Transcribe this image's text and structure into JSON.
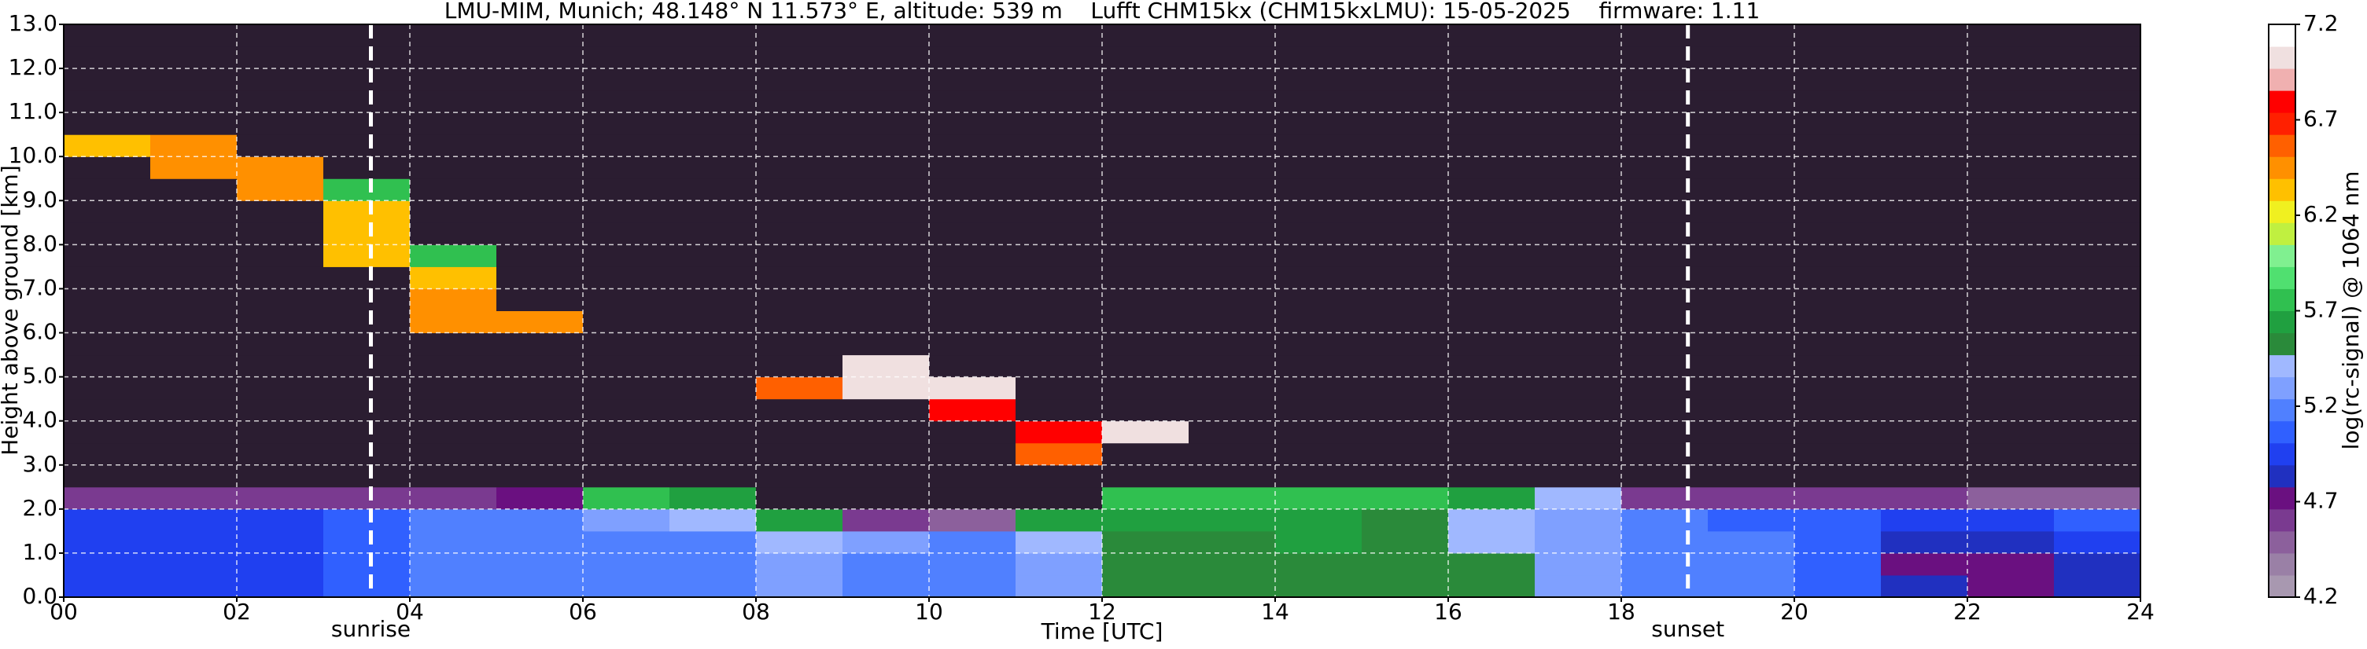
{
  "chart_data": {
    "type": "heatmap",
    "title": "LMU-MIM, Munich; 48.148° N 11.573° E, altitude: 539 m    Lufft CHM15kx (CHM15kxLMU): 15-05-2025    firmware: 1.11",
    "xlabel": "Time [UTC]",
    "ylabel": "Height above ground [km]",
    "colorbar_label": "log(rc-signal) @ 1064 nm",
    "xlim": [
      0,
      24
    ],
    "ylim": [
      0,
      13
    ],
    "clim": [
      4.2,
      7.2
    ],
    "xticks": [
      {
        "value": 0,
        "label": "00"
      },
      {
        "value": 2,
        "label": "02"
      },
      {
        "value": 4,
        "label": "04"
      },
      {
        "value": 6,
        "label": "06"
      },
      {
        "value": 8,
        "label": "08"
      },
      10,
      12,
      14,
      16,
      18,
      20,
      22,
      24
    ],
    "yticks": [
      {
        "value": 0,
        "label": "0.0"
      },
      {
        "value": 1,
        "label": "1.0"
      },
      {
        "value": 2,
        "label": "2.0"
      },
      {
        "value": 3,
        "label": "3.0"
      },
      {
        "value": 4,
        "label": "4.0"
      },
      {
        "value": 5,
        "label": "5.0"
      },
      {
        "value": 6,
        "label": "6.0"
      },
      {
        "value": 7,
        "label": "7.0"
      },
      {
        "value": 8,
        "label": "8.0"
      },
      {
        "value": 9,
        "label": "9.0"
      },
      {
        "value": 10,
        "label": "10.0"
      },
      {
        "value": 11,
        "label": "11.0"
      },
      {
        "value": 12,
        "label": "12.0"
      },
      {
        "value": 13,
        "label": "13.0"
      }
    ],
    "cticks": [
      4.2,
      4.7,
      5.2,
      5.7,
      6.2,
      6.7,
      7.2
    ],
    "grid": true,
    "grid_color": "#ffffff",
    "under_color": "#2b1d31",
    "colormap": [
      "#a898b0",
      "#9a80a6",
      "#8c609c",
      "#7a3a90",
      "#6a1080",
      "#2030c0",
      "#2040f0",
      "#3060ff",
      "#5080ff",
      "#7fa0ff",
      "#a0b8ff",
      "#2a8a3a",
      "#20a040",
      "#30c050",
      "#50e070",
      "#80f090",
      "#c0f040",
      "#f0f020",
      "#ffc000",
      "#ff9000",
      "#ff6000",
      "#ff2000",
      "#ff0000",
      "#f0b0b0",
      "#f0e0e0",
      "#ffffff"
    ],
    "annotations": [
      {
        "text": "sunrise",
        "x": 3.55
      },
      {
        "text": "sunset",
        "x": 18.77
      }
    ],
    "x_bins": [
      0,
      1,
      2,
      3,
      4,
      5,
      6,
      7,
      8,
      9,
      10,
      11,
      12,
      13,
      14,
      15,
      16,
      17,
      18,
      19,
      20,
      21,
      22,
      23,
      24
    ],
    "y_bins": [
      0,
      0.5,
      1,
      1.5,
      2,
      2.5,
      3,
      3.5,
      4,
      4.5,
      5,
      5.5,
      6,
      6.5,
      7,
      7.5,
      8,
      8.5,
      9,
      9.5,
      10,
      10.5,
      11,
      11.5,
      12,
      12.5,
      13
    ],
    "z": [
      [
        5,
        5,
        5,
        5,
        4.6,
        4,
        4,
        4,
        4,
        4,
        4,
        4,
        4,
        4,
        4,
        4,
        4,
        4,
        4,
        4,
        6.3,
        4,
        4,
        4,
        4,
        4
      ],
      [
        5,
        5,
        5,
        5,
        4.6,
        4,
        4,
        4,
        4,
        4,
        4,
        4,
        4,
        4,
        4,
        4,
        4,
        4,
        4,
        6.4,
        6.4,
        4,
        4,
        4,
        4,
        4
      ],
      [
        5,
        5,
        5,
        5,
        4.6,
        4,
        4,
        4,
        4,
        4,
        4,
        4,
        4,
        4,
        4,
        4,
        4,
        4,
        6.5,
        6.5,
        4,
        4,
        4,
        4,
        4,
        4
      ],
      [
        5.1,
        5.1,
        5.1,
        5.1,
        4.6,
        4,
        4,
        4,
        4,
        4,
        4,
        4,
        4,
        4,
        4,
        6.3,
        6.3,
        6.3,
        5.7,
        4,
        4,
        4,
        4,
        4,
        4,
        4
      ],
      [
        5.2,
        5.2,
        5.2,
        5.2,
        4.6,
        4,
        4,
        4,
        4,
        4,
        4,
        4,
        6.4,
        6.4,
        6.3,
        5.7,
        4,
        4,
        4,
        4,
        4,
        4,
        4,
        4,
        4,
        4
      ],
      [
        5.2,
        5.2,
        5.2,
        5.2,
        4.7,
        4,
        4,
        4,
        4,
        4,
        4,
        4,
        6.5,
        4,
        4,
        4,
        4,
        4,
        4,
        4,
        4,
        4,
        4,
        4,
        4,
        4
      ],
      [
        5.2,
        5.2,
        5.2,
        5.3,
        5.8,
        4,
        4,
        4,
        4,
        4,
        4,
        4,
        4,
        4,
        4,
        4,
        4,
        4,
        4,
        4,
        4,
        4,
        4,
        4,
        4,
        4
      ],
      [
        5.2,
        5.2,
        5.2,
        5.4,
        5.6,
        4,
        4,
        4,
        4,
        4,
        4,
        4,
        4,
        4,
        4,
        4,
        4,
        4,
        4,
        4,
        4,
        4,
        4,
        4,
        4,
        4
      ],
      [
        5.3,
        5.3,
        5.4,
        5.6,
        4,
        4,
        4,
        4,
        4,
        6.6,
        4,
        4,
        4,
        4,
        4,
        4,
        4,
        4,
        4,
        4,
        4,
        4,
        4,
        4,
        4,
        4
      ],
      [
        5.2,
        5.2,
        5.3,
        4.6,
        4,
        4,
        4,
        4,
        4,
        7.0,
        7.0,
        4,
        4,
        4,
        4,
        4,
        4,
        4,
        4,
        4,
        4,
        4,
        4,
        4,
        4,
        4
      ],
      [
        5.2,
        5.2,
        5.2,
        4.5,
        4,
        4,
        4,
        4,
        6.8,
        7.0,
        4,
        4,
        4,
        4,
        4,
        4,
        4,
        4,
        4,
        4,
        4,
        4,
        4,
        4,
        4,
        4
      ],
      [
        5.3,
        5.3,
        5.4,
        5.6,
        4,
        4,
        6.6,
        6.8,
        4,
        4,
        4,
        4,
        4,
        4,
        4,
        4,
        4,
        4,
        4,
        4,
        4,
        4,
        4,
        4,
        4,
        4
      ],
      [
        5.5,
        5.5,
        5.5,
        5.6,
        5.7,
        4,
        4,
        7.0,
        4,
        4,
        4,
        4,
        4,
        4,
        4,
        4,
        4,
        4,
        4,
        4,
        4,
        4,
        4,
        4,
        4,
        4
      ],
      [
        5.5,
        5.5,
        5.5,
        5.6,
        5.8,
        4,
        4,
        4,
        4,
        4,
        4,
        4,
        4,
        4,
        4,
        4,
        4,
        4,
        4,
        4,
        4,
        4,
        4,
        4,
        4,
        4
      ],
      [
        5.5,
        5.5,
        5.6,
        5.6,
        5.8,
        4,
        4,
        4,
        4,
        4,
        4,
        4,
        4,
        4,
        4,
        4,
        4,
        4,
        4,
        4,
        4,
        4,
        4,
        4,
        4,
        4
      ],
      [
        5.5,
        5.5,
        5.5,
        5.5,
        5.8,
        4,
        4,
        4,
        4,
        4,
        4,
        4,
        4,
        4,
        4,
        4,
        4,
        4,
        4,
        4,
        4,
        4,
        4,
        4,
        4,
        4
      ],
      [
        5.5,
        5.5,
        5.4,
        5.4,
        5.6,
        4,
        4,
        4,
        4,
        4,
        4,
        4,
        4,
        4,
        4,
        4,
        4,
        4,
        4,
        4,
        4,
        4,
        4,
        4,
        4,
        4
      ],
      [
        5.3,
        5.3,
        5.3,
        5.3,
        5.4,
        4,
        4,
        4,
        4,
        4,
        4,
        4,
        4,
        4,
        4,
        4,
        4,
        4,
        4,
        4,
        4,
        4,
        4,
        4,
        4,
        4
      ],
      [
        5.2,
        5.2,
        5.2,
        5.2,
        4.6,
        4,
        4,
        4,
        4,
        4,
        4,
        4,
        4,
        4,
        4,
        4,
        4,
        4,
        4,
        4,
        4,
        4,
        4,
        4,
        4,
        4
      ],
      [
        5.2,
        5.2,
        5.2,
        5.1,
        4.6,
        4,
        4,
        4,
        4,
        4,
        4,
        4,
        4,
        4,
        4,
        4,
        4,
        4,
        4,
        4,
        4,
        4,
        4,
        4,
        4,
        4
      ],
      [
        5.1,
        5.1,
        5.1,
        5.1,
        4.6,
        4,
        4,
        4,
        4,
        4,
        4,
        4,
        4,
        4,
        4,
        4,
        4,
        4,
        4,
        4,
        4,
        4,
        4,
        4,
        4,
        4
      ],
      [
        4.8,
        4.7,
        4.8,
        5.0,
        4.6,
        4,
        4,
        4,
        4,
        4,
        4,
        4,
        4,
        4,
        4,
        4,
        4,
        4,
        4,
        4,
        4,
        4,
        4,
        4,
        4,
        4
      ],
      [
        4.7,
        4.7,
        4.8,
        5.0,
        4.5,
        4,
        4,
        4,
        4,
        4,
        4,
        4,
        4,
        4,
        4,
        4,
        4,
        4,
        4,
        4,
        4,
        4,
        4,
        4,
        4,
        4
      ],
      [
        4.8,
        4.8,
        4.9,
        5.1,
        4.5,
        4,
        4,
        4,
        4,
        4,
        4,
        4,
        4,
        4,
        4,
        4,
        4,
        4,
        4,
        4,
        4,
        4,
        4,
        4,
        4,
        4
      ]
    ]
  }
}
